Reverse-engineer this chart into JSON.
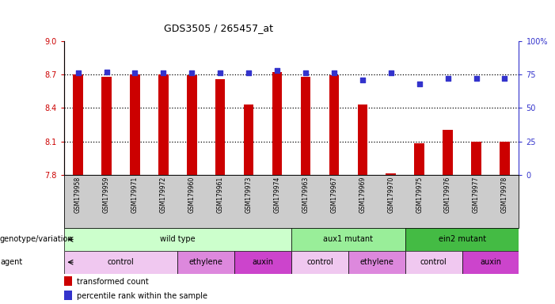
{
  "title": "GDS3505 / 265457_at",
  "samples": [
    "GSM179958",
    "GSM179959",
    "GSM179971",
    "GSM179972",
    "GSM179960",
    "GSM179961",
    "GSM179973",
    "GSM179974",
    "GSM179963",
    "GSM179967",
    "GSM179969",
    "GSM179970",
    "GSM179975",
    "GSM179976",
    "GSM179977",
    "GSM179978"
  ],
  "bar_values": [
    8.7,
    8.68,
    8.7,
    8.7,
    8.69,
    8.66,
    8.43,
    8.72,
    8.68,
    8.69,
    8.43,
    7.81,
    8.08,
    8.2,
    8.1,
    8.1
  ],
  "percentile_values": [
    76,
    77,
    76,
    76,
    76,
    76,
    76,
    78,
    76,
    76,
    71,
    76,
    68,
    72,
    72,
    72
  ],
  "bar_bottom": 7.8,
  "ylim_left": [
    7.8,
    9.0
  ],
  "ylim_right": [
    0,
    100
  ],
  "yticks_left": [
    7.8,
    8.1,
    8.4,
    8.7,
    9.0
  ],
  "yticks_right": [
    0,
    25,
    50,
    75,
    100
  ],
  "hlines": [
    8.1,
    8.4,
    8.7
  ],
  "bar_color": "#cc0000",
  "percentile_color": "#3333cc",
  "bar_width": 0.35,
  "groups": {
    "genotype": [
      {
        "label": "wild type",
        "start": 0,
        "end": 8,
        "color": "#ccffcc"
      },
      {
        "label": "aux1 mutant",
        "start": 8,
        "end": 12,
        "color": "#99ee99"
      },
      {
        "label": "ein2 mutant",
        "start": 12,
        "end": 16,
        "color": "#44bb44"
      }
    ],
    "agent": [
      {
        "label": "control",
        "start": 0,
        "end": 4,
        "color": "#f0c8f0"
      },
      {
        "label": "ethylene",
        "start": 4,
        "end": 6,
        "color": "#dd88dd"
      },
      {
        "label": "auxin",
        "start": 6,
        "end": 8,
        "color": "#cc44cc"
      },
      {
        "label": "control",
        "start": 8,
        "end": 10,
        "color": "#f0c8f0"
      },
      {
        "label": "ethylene",
        "start": 10,
        "end": 12,
        "color": "#dd88dd"
      },
      {
        "label": "control",
        "start": 12,
        "end": 14,
        "color": "#f0c8f0"
      },
      {
        "label": "auxin",
        "start": 14,
        "end": 16,
        "color": "#cc44cc"
      }
    ]
  },
  "legend_items": [
    {
      "label": "transformed count",
      "color": "#cc0000"
    },
    {
      "label": "percentile rank within the sample",
      "color": "#3333cc"
    }
  ],
  "label_genotype": "genotype/variation",
  "label_agent": "agent",
  "tick_color_left": "#cc0000",
  "tick_color_right": "#3333cc",
  "xtick_bg_color": "#cccccc",
  "background_color": "#ffffff"
}
